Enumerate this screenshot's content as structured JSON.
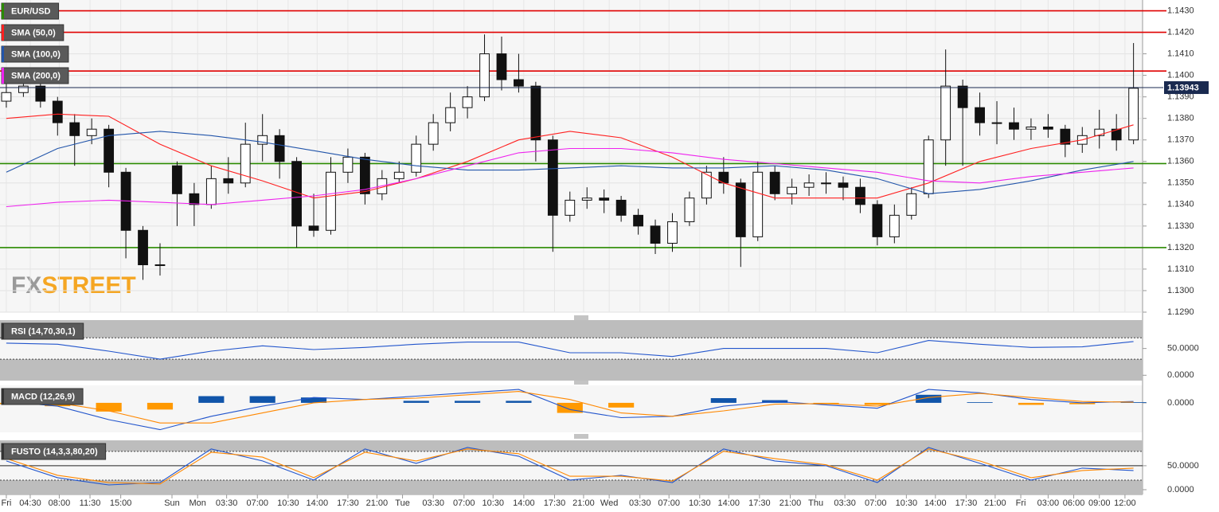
{
  "chart_data": [
    {
      "type": "candlestick",
      "symbol": "EUR/USD",
      "symbol_color": "#2a8a00",
      "watermark": {
        "part1": "FX",
        "part2": "STREET"
      },
      "xlim": [
        -0.37,
        66.53
      ],
      "ylim": [
        1.129,
        1.1435
      ],
      "grid": true,
      "last_price": 1.13943,
      "last_price_color": "#1a2a50",
      "yticks": [
        {
          "value": 1.143,
          "label": "1.1430"
        },
        {
          "value": 1.142,
          "label": "1.1420"
        },
        {
          "value": 1.141,
          "label": "1.1410"
        },
        {
          "value": 1.14,
          "label": "1.1400"
        },
        {
          "value": 1.139,
          "label": "1.1390"
        },
        {
          "value": 1.138,
          "label": "1.1380"
        },
        {
          "value": 1.137,
          "label": "1.1370"
        },
        {
          "value": 1.136,
          "label": "1.1360"
        },
        {
          "value": 1.135,
          "label": "1.1350"
        },
        {
          "value": 1.134,
          "label": "1.1340"
        },
        {
          "value": 1.133,
          "label": "1.1330"
        },
        {
          "value": 1.132,
          "label": "1.1320"
        },
        {
          "value": 1.131,
          "label": "1.1310"
        },
        {
          "value": 1.13,
          "label": "1.1300"
        },
        {
          "value": 1.129,
          "label": "1.1290"
        }
      ],
      "xticks": [
        {
          "value": 0,
          "label": "Fri"
        },
        {
          "value": 1.4,
          "label": "04:30"
        },
        {
          "value": 3.1,
          "label": "08:00"
        },
        {
          "value": 4.9,
          "label": "11:30"
        },
        {
          "value": 6.7,
          "label": "15:00"
        },
        {
          "value": 9.7,
          "label": "Sun"
        },
        {
          "value": 11.2,
          "label": "Mon"
        },
        {
          "value": 12.9,
          "label": "03:30"
        },
        {
          "value": 14.7,
          "label": "07:00"
        },
        {
          "value": 16.5,
          "label": "10:30"
        },
        {
          "value": 18.2,
          "label": "14:00"
        },
        {
          "value": 20,
          "label": "17:30"
        },
        {
          "value": 21.7,
          "label": "21:00"
        },
        {
          "value": 23.2,
          "label": "Tue"
        },
        {
          "value": 25,
          "label": "03:30"
        },
        {
          "value": 26.8,
          "label": "07:00"
        },
        {
          "value": 28.5,
          "label": "10:30"
        },
        {
          "value": 30.3,
          "label": "14:00"
        },
        {
          "value": 32.1,
          "label": "17:30"
        },
        {
          "value": 33.8,
          "label": "21:00"
        },
        {
          "value": 35.3,
          "label": "Wed"
        },
        {
          "value": 37.1,
          "label": "03:30"
        },
        {
          "value": 38.8,
          "label": "07:00"
        },
        {
          "value": 40.6,
          "label": "10:30"
        },
        {
          "value": 42.3,
          "label": "14:00"
        },
        {
          "value": 44.1,
          "label": "17:30"
        },
        {
          "value": 45.9,
          "label": "21:00"
        },
        {
          "value": 47.4,
          "label": "Thu"
        },
        {
          "value": 49.1,
          "label": "03:30"
        },
        {
          "value": 50.9,
          "label": "07:00"
        },
        {
          "value": 52.7,
          "label": "10:30"
        },
        {
          "value": 54.4,
          "label": "14:00"
        },
        {
          "value": 56.2,
          "label": "17:30"
        },
        {
          "value": 57.9,
          "label": "21:00"
        },
        {
          "value": 59.4,
          "label": "Fri"
        },
        {
          "value": 61,
          "label": "03:00"
        },
        {
          "value": 62.5,
          "label": "06:00"
        },
        {
          "value": 64,
          "label": "09:00"
        },
        {
          "value": 65.5,
          "label": "12:00"
        }
      ],
      "levels": [
        {
          "value": 1.143,
          "color": "#e00000"
        },
        {
          "value": 1.142,
          "color": "#e00000"
        },
        {
          "value": 1.1402,
          "color": "#e00000"
        },
        {
          "value": 1.1359,
          "color": "#2a8a00"
        },
        {
          "value": 1.132,
          "color": "#2a8a00"
        }
      ],
      "ohlc": [
        [
          1.1388,
          1.1398,
          1.1385,
          1.1392
        ],
        [
          1.1392,
          1.14,
          1.139,
          1.1395
        ],
        [
          1.1395,
          1.1397,
          1.1385,
          1.1388
        ],
        [
          1.1388,
          1.139,
          1.1372,
          1.1378
        ],
        [
          1.1378,
          1.1382,
          1.1358,
          1.1372
        ],
        [
          1.1372,
          1.138,
          1.1368,
          1.1375
        ],
        [
          1.1375,
          1.1377,
          1.1348,
          1.1355
        ],
        [
          1.1355,
          1.1357,
          1.1315,
          1.1328
        ],
        [
          1.1328,
          1.133,
          1.1305,
          1.1312
        ],
        [
          1.1312,
          1.1322,
          1.1307,
          1.1312
        ],
        [
          1.1358,
          1.136,
          1.133,
          1.1345
        ],
        [
          1.1345,
          1.135,
          1.133,
          1.134
        ],
        [
          1.134,
          1.1358,
          1.1338,
          1.1352
        ],
        [
          1.1352,
          1.1362,
          1.1345,
          1.135
        ],
        [
          1.135,
          1.1378,
          1.1348,
          1.1368
        ],
        [
          1.1368,
          1.1382,
          1.136,
          1.1372
        ],
        [
          1.1372,
          1.1375,
          1.1352,
          1.136
        ],
        [
          1.136,
          1.1362,
          1.132,
          1.133
        ],
        [
          1.133,
          1.1345,
          1.1325,
          1.1328
        ],
        [
          1.1328,
          1.1362,
          1.1326,
          1.1355
        ],
        [
          1.1355,
          1.1366,
          1.135,
          1.1362
        ],
        [
          1.1362,
          1.1364,
          1.134,
          1.1345
        ],
        [
          1.1345,
          1.1356,
          1.1342,
          1.1352
        ],
        [
          1.1352,
          1.136,
          1.135,
          1.1355
        ],
        [
          1.1355,
          1.1372,
          1.1353,
          1.1368
        ],
        [
          1.1368,
          1.1382,
          1.1365,
          1.1378
        ],
        [
          1.1378,
          1.1392,
          1.1374,
          1.1385
        ],
        [
          1.1385,
          1.1395,
          1.138,
          1.139
        ],
        [
          1.139,
          1.1419,
          1.1388,
          1.141
        ],
        [
          1.141,
          1.1418,
          1.1393,
          1.1398
        ],
        [
          1.1398,
          1.141,
          1.1392,
          1.1395
        ],
        [
          1.1395,
          1.1397,
          1.136,
          1.137
        ],
        [
          1.137,
          1.1372,
          1.1318,
          1.1335
        ],
        [
          1.1335,
          1.1346,
          1.1332,
          1.1342
        ],
        [
          1.1342,
          1.1348,
          1.1338,
          1.1343
        ],
        [
          1.1343,
          1.1347,
          1.1336,
          1.1342
        ],
        [
          1.1342,
          1.1344,
          1.1332,
          1.1335
        ],
        [
          1.1335,
          1.1338,
          1.1326,
          1.133
        ],
        [
          1.133,
          1.1333,
          1.1317,
          1.1322
        ],
        [
          1.1322,
          1.1336,
          1.1318,
          1.1332
        ],
        [
          1.1332,
          1.1346,
          1.133,
          1.1343
        ],
        [
          1.1343,
          1.1358,
          1.134,
          1.1355
        ],
        [
          1.1355,
          1.1362,
          1.1345,
          1.135
        ],
        [
          1.135,
          1.1352,
          1.1311,
          1.1325
        ],
        [
          1.1325,
          1.136,
          1.1323,
          1.1355
        ],
        [
          1.1355,
          1.1358,
          1.1342,
          1.1345
        ],
        [
          1.1345,
          1.1352,
          1.134,
          1.1348
        ],
        [
          1.1348,
          1.1354,
          1.1344,
          1.135
        ],
        [
          1.135,
          1.1355,
          1.1345,
          1.135
        ],
        [
          1.135,
          1.1353,
          1.1342,
          1.1348
        ],
        [
          1.1348,
          1.1352,
          1.1336,
          1.134
        ],
        [
          1.134,
          1.1342,
          1.1321,
          1.1325
        ],
        [
          1.1325,
          1.134,
          1.1322,
          1.1335
        ],
        [
          1.1335,
          1.1348,
          1.1333,
          1.1345
        ],
        [
          1.1345,
          1.1372,
          1.1343,
          1.137
        ],
        [
          1.137,
          1.1412,
          1.1358,
          1.1395
        ],
        [
          1.1395,
          1.1398,
          1.1358,
          1.1385
        ],
        [
          1.1385,
          1.1392,
          1.1372,
          1.1378
        ],
        [
          1.1378,
          1.1388,
          1.1368,
          1.1378
        ],
        [
          1.1378,
          1.1385,
          1.137,
          1.1375
        ],
        [
          1.1375,
          1.138,
          1.137,
          1.1376
        ],
        [
          1.1376,
          1.1382,
          1.1371,
          1.1375
        ],
        [
          1.1375,
          1.1377,
          1.1362,
          1.1368
        ],
        [
          1.1368,
          1.1376,
          1.1364,
          1.1372
        ],
        [
          1.1372,
          1.1384,
          1.1366,
          1.1375
        ],
        [
          1.1375,
          1.1382,
          1.1365,
          1.137
        ],
        [
          1.137,
          1.1415,
          1.1368,
          1.1394
        ]
      ],
      "x": [
        0,
        3,
        6,
        9,
        12,
        15,
        18,
        21,
        24,
        27,
        30,
        33,
        36,
        39,
        42,
        45,
        48,
        51,
        54,
        57,
        60,
        63,
        66
      ],
      "series": [
        {
          "name": "SMA (50,0)",
          "color": "#ff2020",
          "values": [
            1.138,
            1.1382,
            1.1381,
            1.1368,
            1.1358,
            1.1351,
            1.1343,
            1.1346,
            1.1352,
            1.136,
            1.137,
            1.1374,
            1.1371,
            1.1362,
            1.135,
            1.1343,
            1.1343,
            1.1343,
            1.135,
            1.136,
            1.1366,
            1.137,
            1.1377
          ]
        },
        {
          "name": "SMA (100,0)",
          "color": "#2255aa",
          "values": [
            1.1355,
            1.1366,
            1.1372,
            1.1374,
            1.1372,
            1.1369,
            1.1365,
            1.1361,
            1.1358,
            1.1356,
            1.1356,
            1.1357,
            1.1358,
            1.1357,
            1.1357,
            1.1358,
            1.1356,
            1.1352,
            1.1345,
            1.1347,
            1.1351,
            1.1356,
            1.136
          ]
        },
        {
          "name": "SMA (200,0)",
          "color": "#ee22ee",
          "values": [
            1.1339,
            1.1341,
            1.1342,
            1.1341,
            1.134,
            1.1342,
            1.1344,
            1.1347,
            1.1352,
            1.1358,
            1.1364,
            1.1366,
            1.1366,
            1.1364,
            1.1361,
            1.1359,
            1.1357,
            1.1355,
            1.1351,
            1.135,
            1.1353,
            1.1355,
            1.1357
          ]
        }
      ]
    },
    {
      "type": "line",
      "label": "RSI (14,70,30,1)",
      "ylim": [
        -10,
        103
      ],
      "bands": [
        30,
        70
      ],
      "yticks": [
        {
          "value": 50,
          "label": "50.0000"
        },
        {
          "value": 0,
          "label": "0.0000"
        }
      ],
      "x": [
        0,
        3,
        6,
        9,
        12,
        15,
        18,
        21,
        24,
        27,
        30,
        33,
        36,
        39,
        42,
        45,
        48,
        51,
        54,
        57,
        60,
        63,
        66
      ],
      "series": [
        {
          "color": "#2255cc",
          "values": [
            60,
            58,
            45,
            30,
            45,
            55,
            48,
            52,
            58,
            62,
            62,
            42,
            42,
            35,
            50,
            50,
            50,
            42,
            65,
            58,
            52,
            53,
            63
          ]
        }
      ]
    },
    {
      "type": "macd",
      "label": "MACD (12,26,9)",
      "ylim": [
        -0.00044,
        0.00026
      ],
      "yticks": [
        {
          "value": 0,
          "label": "0.0000"
        }
      ],
      "x": [
        0,
        3,
        6,
        9,
        12,
        15,
        18,
        21,
        24,
        27,
        30,
        33,
        36,
        39,
        42,
        45,
        48,
        51,
        54,
        57,
        60,
        63,
        66
      ],
      "histogram": {
        "colors": {
          "up": "#1155aa",
          "down": "#ff9900"
        },
        "values": [
          -2e-05,
          -5e-05,
          -0.00013,
          -0.0001,
          0.0001,
          0.0001,
          8e-05,
          0,
          3e-05,
          3e-05,
          3e-05,
          -0.00015,
          -7e-05,
          0,
          7e-05,
          4e-05,
          -2e-05,
          -3e-05,
          0.00012,
          1e-05,
          -3e-05,
          -2e-05,
          1e-05
        ]
      },
      "series": [
        {
          "color": "#2255cc",
          "values": [
            2e-05,
            -5e-05,
            -0.00025,
            -0.0004,
            -0.0002,
            -5e-05,
            8e-05,
            5e-05,
            0.0001,
            0.00015,
            0.0002,
            -0.0001,
            -0.00022,
            -0.0002,
            -5e-05,
            2e-05,
            -3e-05,
            -8e-05,
            0.0002,
            0.00015,
            5e-05,
            0,
            2e-05
          ]
        },
        {
          "color": "#ff8800",
          "values": [
            4e-05,
            0,
            -0.00012,
            -0.0003,
            -0.0003,
            -0.00015,
            0,
            5e-05,
            7e-05,
            0.00012,
            0.00017,
            5e-05,
            -0.00015,
            -0.0002,
            -0.00012,
            -2e-05,
            -1e-05,
            -5e-05,
            8e-05,
            0.00014,
            8e-05,
            2e-05,
            1e-05
          ]
        }
      ]
    },
    {
      "type": "line",
      "label": "FUSTO (14,3,3,80,20)",
      "ylim": [
        -10,
        103
      ],
      "bands": [
        20,
        80
      ],
      "midline": 50,
      "yticks": [
        {
          "value": 50,
          "label": "50.0000"
        },
        {
          "value": 0,
          "label": "0.0000"
        }
      ],
      "x": [
        0,
        3,
        6,
        9,
        12,
        15,
        18,
        21,
        24,
        27,
        30,
        33,
        36,
        39,
        42,
        45,
        48,
        51,
        54,
        57,
        60,
        63,
        66
      ],
      "series": [
        {
          "color": "#2255cc",
          "values": [
            60,
            25,
            10,
            15,
            85,
            60,
            20,
            85,
            55,
            88,
            70,
            20,
            30,
            15,
            85,
            60,
            50,
            15,
            88,
            55,
            20,
            45,
            40
          ]
        },
        {
          "color": "#ff8800",
          "values": [
            65,
            30,
            15,
            12,
            78,
            68,
            25,
            78,
            60,
            85,
            75,
            28,
            28,
            18,
            80,
            65,
            52,
            20,
            85,
            60,
            25,
            40,
            45
          ]
        }
      ]
    }
  ]
}
